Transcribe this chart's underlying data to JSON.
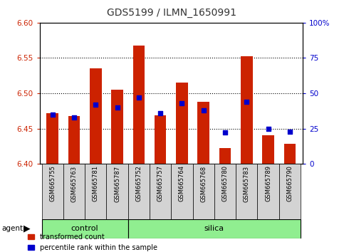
{
  "title": "GDS5199 / ILMN_1650991",
  "samples": [
    "GSM665755",
    "GSM665763",
    "GSM665781",
    "GSM665787",
    "GSM665752",
    "GSM665757",
    "GSM665764",
    "GSM665768",
    "GSM665780",
    "GSM665783",
    "GSM665789",
    "GSM665790"
  ],
  "groups": [
    "control",
    "control",
    "control",
    "control",
    "silica",
    "silica",
    "silica",
    "silica",
    "silica",
    "silica",
    "silica",
    "silica"
  ],
  "red_values": [
    6.472,
    6.468,
    6.535,
    6.505,
    6.568,
    6.469,
    6.515,
    6.488,
    6.422,
    6.552,
    6.44,
    6.428
  ],
  "blue_percentiles": [
    35,
    33,
    42,
    40,
    47,
    36,
    43,
    38,
    22,
    44,
    25,
    23
  ],
  "ylim": [
    6.4,
    6.6
  ],
  "yticks": [
    6.4,
    6.45,
    6.5,
    6.55,
    6.6
  ],
  "right_yticks": [
    0,
    25,
    50,
    75,
    100
  ],
  "bar_color": "#cc2200",
  "dot_color": "#0000cc",
  "group_color": "#90ee90",
  "left_tick_color": "#cc2200",
  "right_tick_color": "#0000cc",
  "bar_bottom": 6.4,
  "agent_label": "agent",
  "legend_red": "transformed count",
  "legend_blue": "percentile rank within the sample",
  "n_control": 4,
  "n_silica": 8
}
